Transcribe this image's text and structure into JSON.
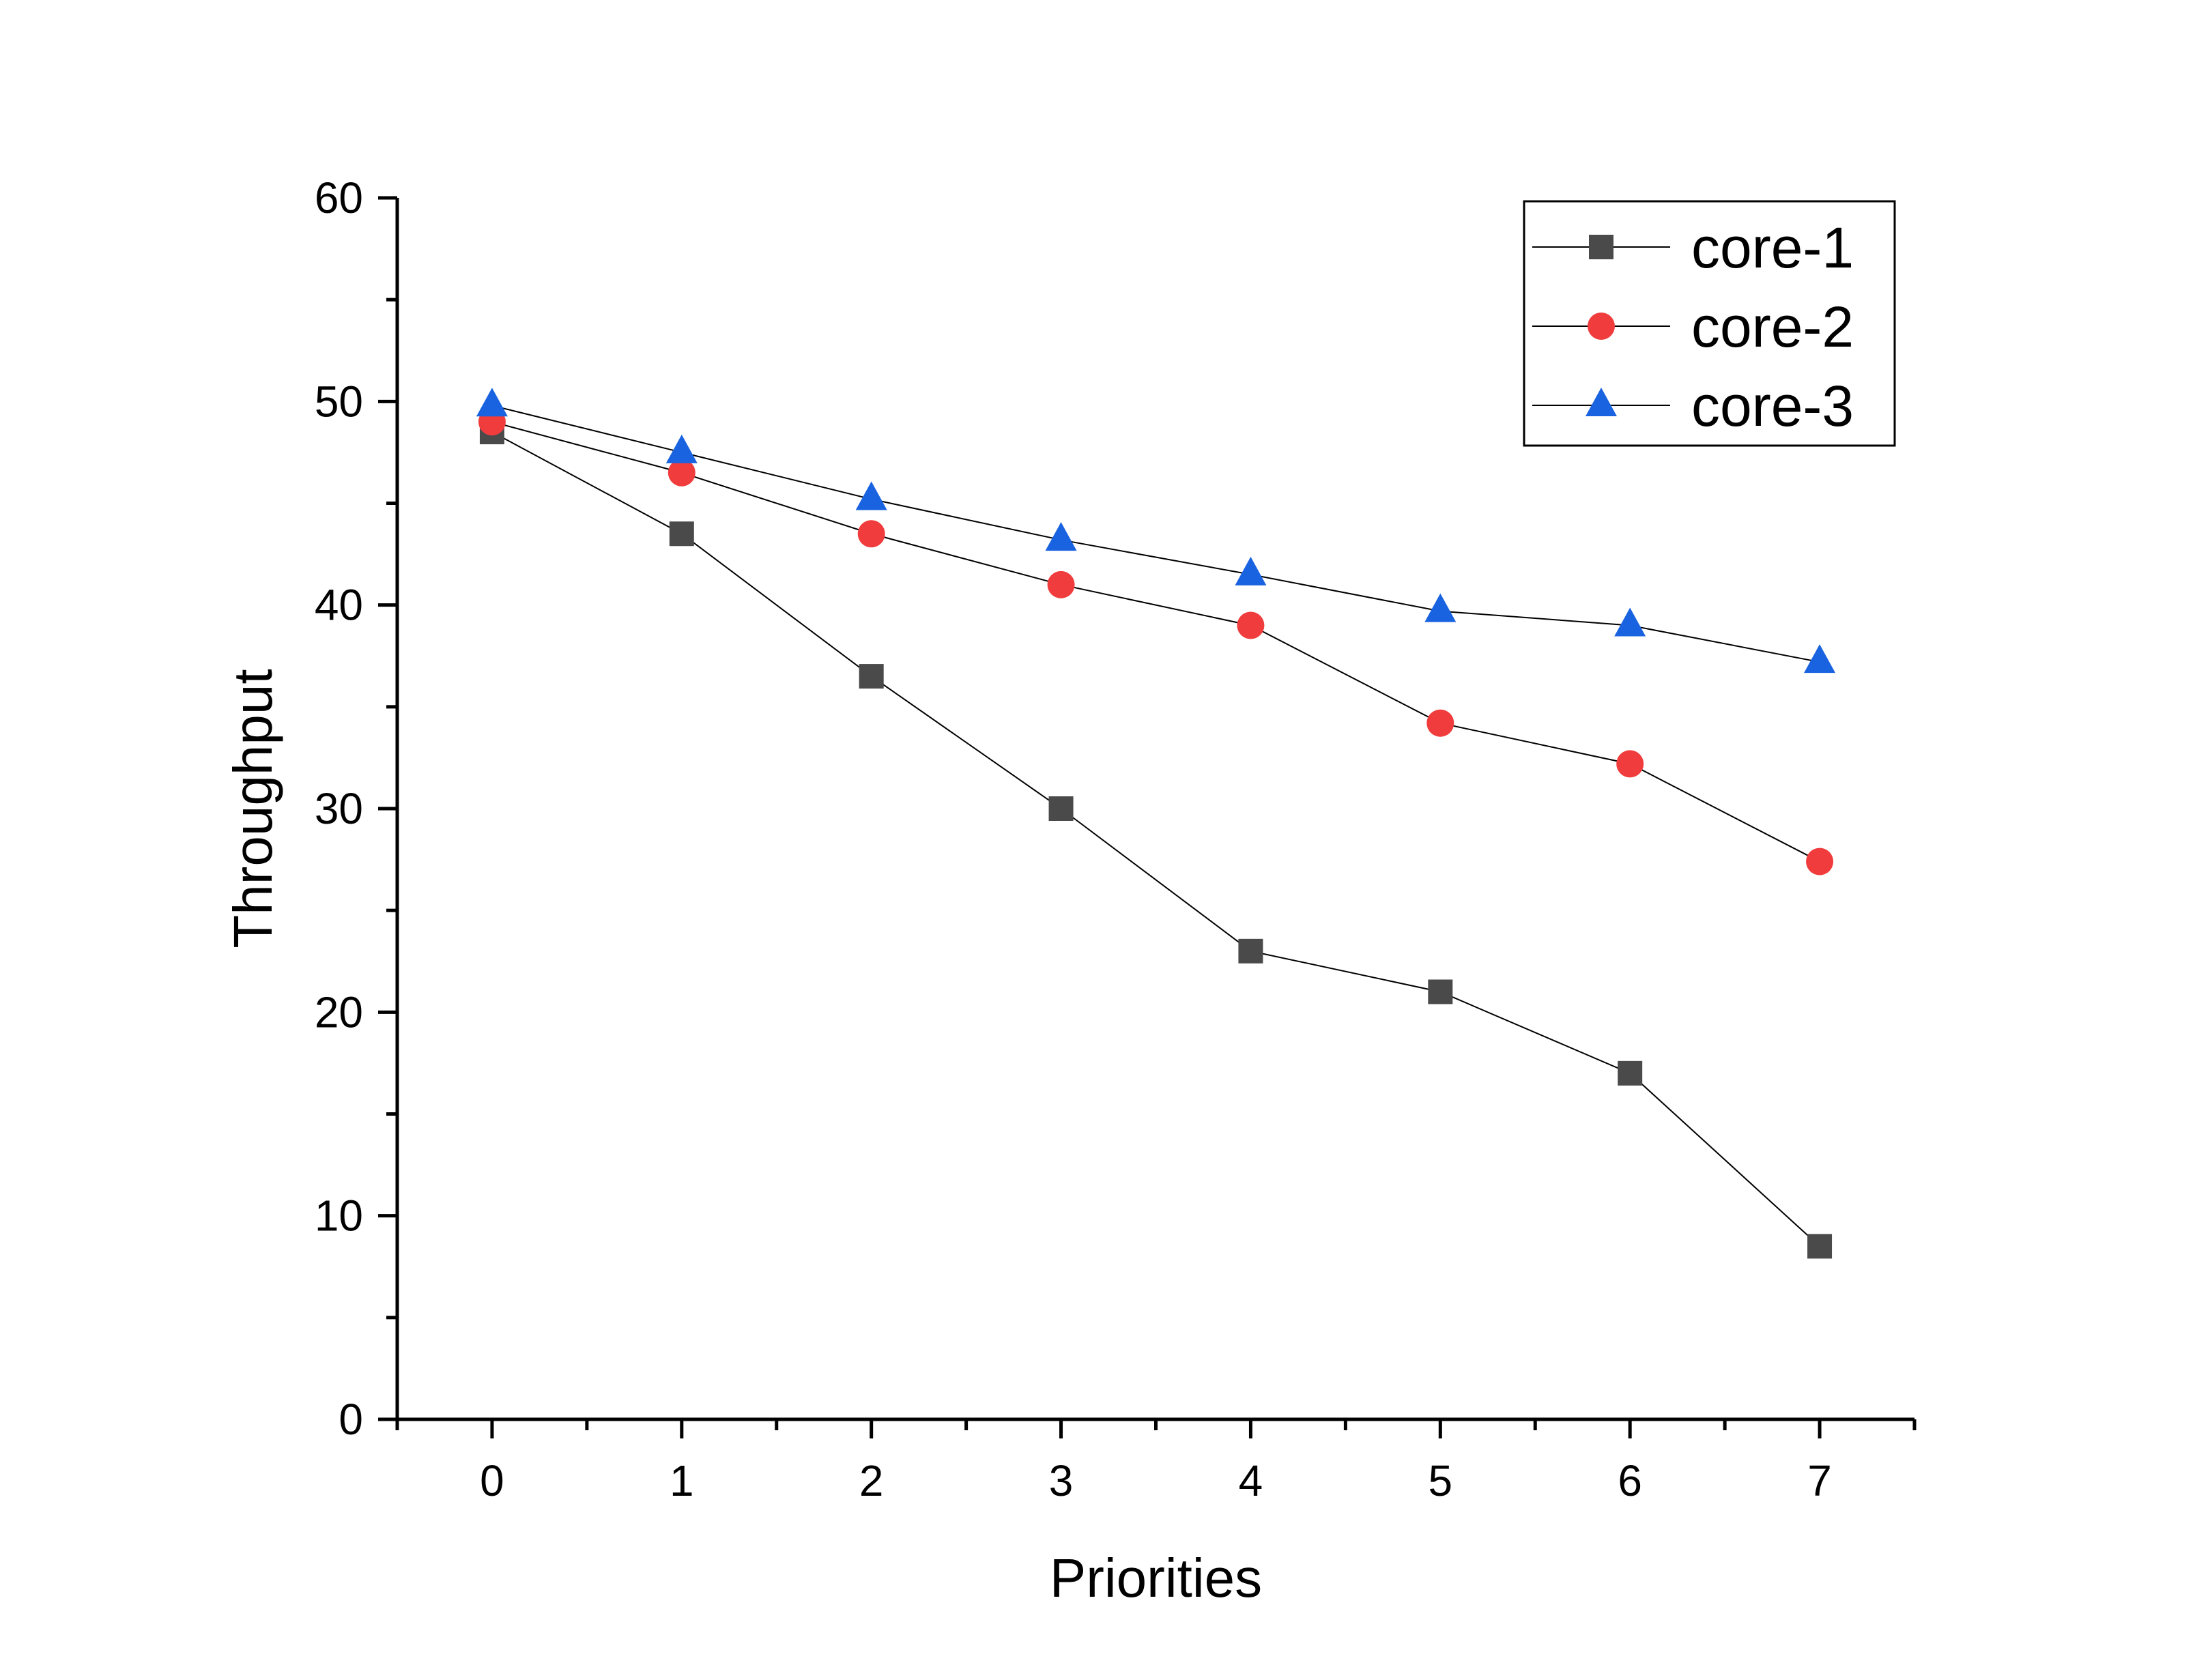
{
  "chart_data": {
    "type": "line",
    "title": "",
    "xlabel": "Priorities",
    "ylabel": "Throughput",
    "x": [
      0,
      1,
      2,
      3,
      4,
      5,
      6,
      7
    ],
    "xlim": [
      -0.5,
      7.5
    ],
    "ylim": [
      0,
      60
    ],
    "x_ticks": [
      "0",
      "1",
      "2",
      "3",
      "4",
      "5",
      "6",
      "7"
    ],
    "y_ticks": [
      "0",
      "10",
      "20",
      "30",
      "40",
      "50",
      "60"
    ],
    "grid": false,
    "legend_position": "top-right",
    "series": [
      {
        "name": "core-1",
        "marker": "square",
        "color": "#4a4a4a",
        "values": [
          48.5,
          43.5,
          36.5,
          30,
          23,
          21,
          17,
          8.5
        ]
      },
      {
        "name": "core-2",
        "marker": "circle",
        "color": "#f03c3c",
        "values": [
          49,
          46.5,
          43.5,
          41,
          39,
          34.2,
          32.2,
          27.4
        ]
      },
      {
        "name": "core-3",
        "marker": "triangle",
        "color": "#1a63e0",
        "values": [
          49.8,
          47.5,
          45.2,
          43.2,
          41.5,
          39.7,
          39,
          37.2
        ]
      }
    ]
  }
}
